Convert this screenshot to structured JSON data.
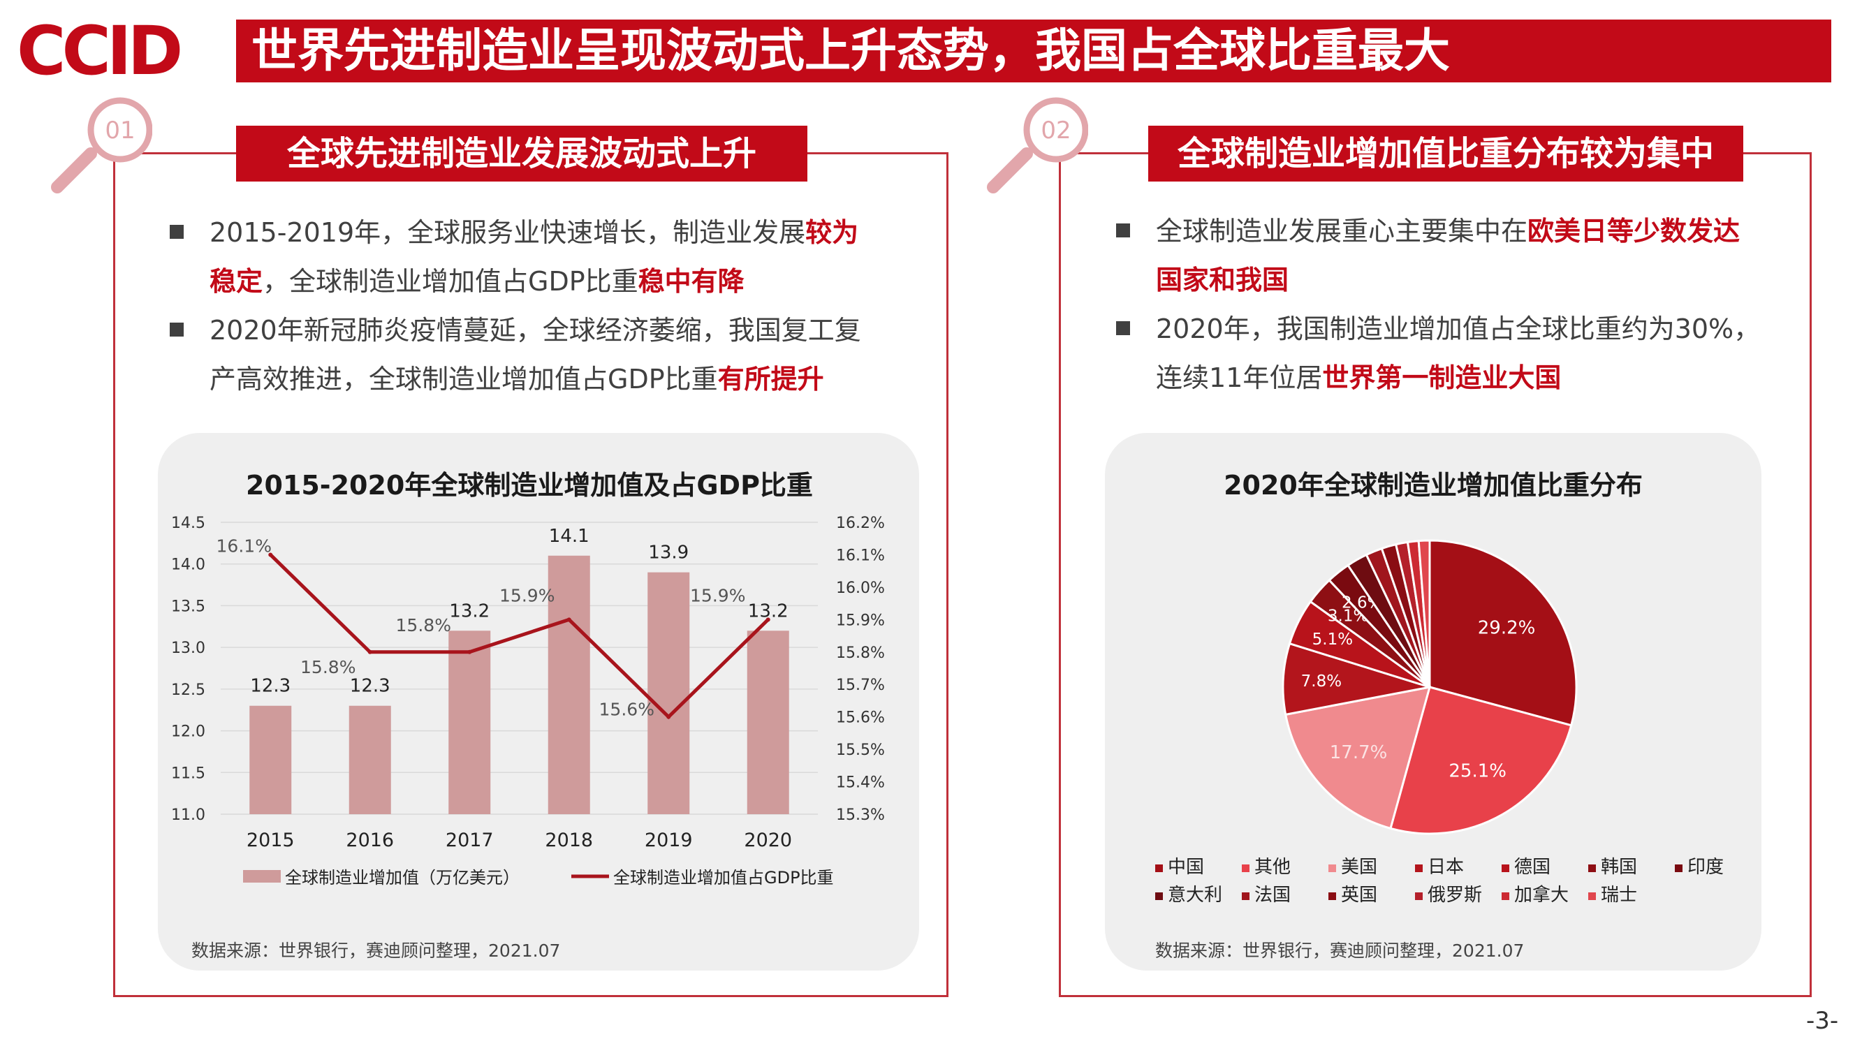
{
  "logo": {
    "text": "CCID"
  },
  "header": {
    "title": "世界先进制造业呈现波动式上升态势，我国占全球比重最大"
  },
  "left": {
    "badge": "01",
    "title": "全球先进制造业发展波动式上升",
    "bullets": [
      {
        "pre": "2015-2019年，全球服务业快速增长，制造业发展",
        "bold1": "较为",
        "line2_bold": "稳定",
        "line2_mid": "，全球制造业增加值占GDP比重",
        "line2_bold2": "稳中有降"
      },
      {
        "pre": "2020年新冠肺炎疫情蔓延，全球经济萎缩，我国复工复",
        "line2_mid": "产高效推进，全球制造业增加值占GDP比重",
        "line2_bold2": "有所提升"
      }
    ],
    "source": "数据来源：世界银行，赛迪顾问整理，2021.07"
  },
  "right": {
    "badge": "02",
    "title": "全球制造业增加值比重分布较为集中",
    "bullets": [
      {
        "pre": "全球制造业发展重心主要集中在",
        "bold1": "欧美日等少数发达",
        "line2_bold": "国家和我国"
      },
      {
        "pre": "2020年，我国制造业增加值占全球比重约为30%，",
        "line2_mid": "连续11年位居",
        "line2_bold2": "世界第一制造业大国"
      }
    ],
    "source": "数据来源：世界银行，赛迪顾问整理，2021.07"
  },
  "page_number": "-3-",
  "colors": {
    "brand_red": "#c20a18",
    "bar": "#cf9b9b",
    "line": "#a8141c"
  },
  "chart_data": [
    {
      "type": "bar",
      "title": "2015-2020年全球制造业增加值及占GDP比重",
      "categories": [
        "2015",
        "2016",
        "2017",
        "2018",
        "2019",
        "2020"
      ],
      "series": [
        {
          "name": "全球制造业增加值（万亿美元）",
          "type": "bar",
          "axis": "left",
          "values": [
            12.3,
            12.3,
            13.2,
            14.1,
            13.9,
            13.2
          ],
          "labels": [
            "12.3",
            "12.3",
            "13.2",
            "14.1",
            "13.9",
            "13.2"
          ]
        },
        {
          "name": "全球制造业增加值占GDP比重",
          "type": "line",
          "axis": "right",
          "values": [
            16.1,
            15.8,
            15.8,
            15.9,
            15.6,
            15.9
          ],
          "labels": [
            "16.1%",
            "15.8%",
            "15.8%",
            "15.9%",
            "15.6%",
            "15.9%"
          ]
        }
      ],
      "ylim_left": [
        11.0,
        14.5
      ],
      "yticks_left": [
        "11.0",
        "11.5",
        "12.0",
        "12.5",
        "13.0",
        "13.5",
        "14.0",
        "14.5"
      ],
      "ylim_right": [
        15.3,
        16.2
      ],
      "yticks_right": [
        "15.3%",
        "15.4%",
        "15.5%",
        "15.6%",
        "15.7%",
        "15.8%",
        "15.9%",
        "16.0%",
        "16.1%",
        "16.2%"
      ],
      "legend_position": "bottom",
      "grid": true
    },
    {
      "type": "pie",
      "title": "2020年全球制造业增加值比重分布",
      "labels": [
        "中国",
        "其他",
        "美国",
        "日本",
        "德国",
        "韩国",
        "印度",
        "意大利",
        "法国",
        "英国",
        "俄罗斯",
        "加拿大",
        "瑞士"
      ],
      "values": [
        29.2,
        25.1,
        17.7,
        7.8,
        5.1,
        3.1,
        2.6,
        2.3,
        1.8,
        1.6,
        1.3,
        1.2,
        1.2
      ],
      "value_labels": [
        "29.2%",
        "25.1%",
        "17.7%",
        "7.8%",
        "5.1%",
        "3.1%",
        "2.6%",
        "",
        "",
        "",
        "",
        "",
        ""
      ],
      "colors": [
        "#a40f16",
        "#e8414a",
        "#f08a8e",
        "#b3151c",
        "#b8131b",
        "#8e0f14",
        "#7a0a10",
        "#6e0c11",
        "#a0161d",
        "#8a0d13",
        "#b4202a",
        "#cc2a32",
        "#e0464d"
      ],
      "legend_position": "bottom"
    }
  ]
}
